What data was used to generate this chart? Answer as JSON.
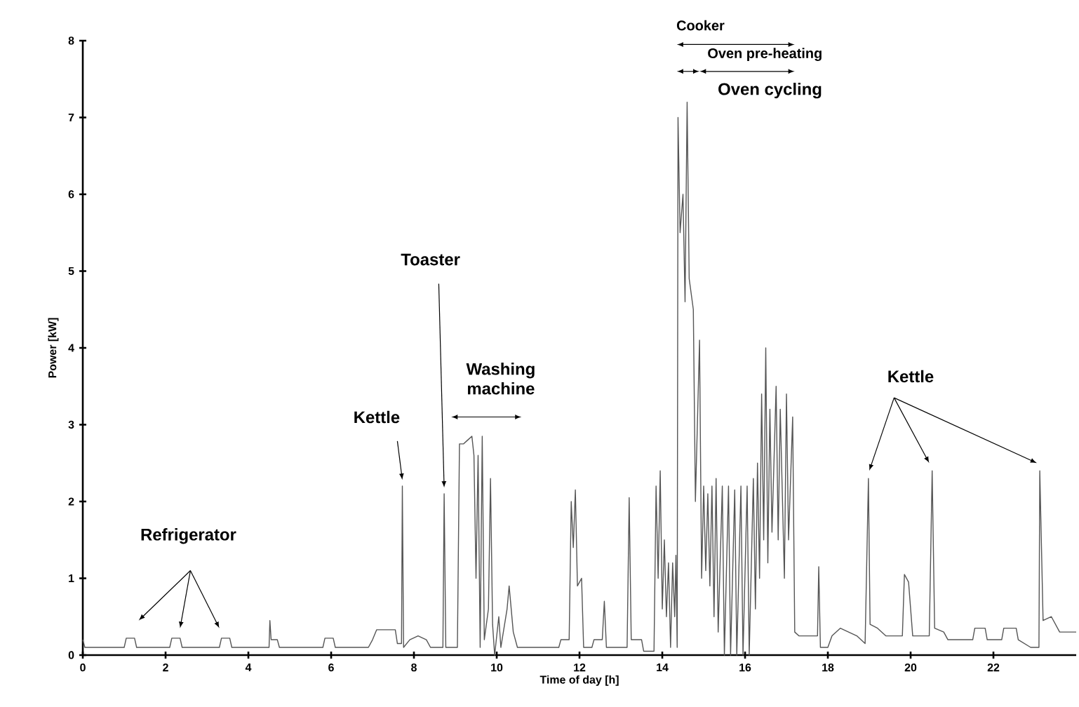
{
  "chart_data": {
    "type": "line",
    "xlabel": "Time of day [h]",
    "ylabel": "Power [kW]",
    "xlim": [
      0,
      24
    ],
    "ylim": [
      0,
      8
    ],
    "xticks": [
      0,
      2,
      4,
      6,
      8,
      10,
      12,
      14,
      16,
      18,
      20,
      22
    ],
    "yticks": [
      0,
      1,
      2,
      3,
      4,
      5,
      6,
      7,
      8
    ],
    "grid": false,
    "marker": "none",
    "line_style": "solid",
    "annotations": [
      "Refrigerator",
      {
        "text": "Kettle",
        "x": 7.72,
        "y": 2.2
      },
      {
        "text": "Toaster",
        "x": 8.73,
        "y": 2.1
      },
      "Washing machine",
      "Cooker",
      "Oven pre-heating",
      "Oven cycling",
      "Kettle"
    ],
    "series": [
      {
        "color": "#555555",
        "x": [
          0,
          0.05,
          1.0,
          1.05,
          1.25,
          1.3,
          2.1,
          2.15,
          2.35,
          2.4,
          3.3,
          3.35,
          3.55,
          3.6,
          4.5,
          4.52,
          4.55,
          4.7,
          4.75,
          5.8,
          5.85,
          6.05,
          6.1,
          6.9,
          7.0,
          7.1,
          7.55,
          7.6,
          7.7,
          7.72,
          7.75,
          7.9,
          8.1,
          8.3,
          8.4,
          8.7,
          8.73,
          8.77,
          9.05,
          9.1,
          9.2,
          9.3,
          9.4,
          9.45,
          9.5,
          9.55,
          9.6,
          9.65,
          9.7,
          9.8,
          9.85,
          9.9,
          9.95,
          10.05,
          10.1,
          10.25,
          10.3,
          10.4,
          10.5,
          11.5,
          11.55,
          11.75,
          11.8,
          11.85,
          11.9,
          11.95,
          12.05,
          12.1,
          12.3,
          12.35,
          12.55,
          12.6,
          12.65,
          13.15,
          13.2,
          13.25,
          13.5,
          13.55,
          13.8,
          13.85,
          13.9,
          13.95,
          14.0,
          14.05,
          14.1,
          14.15,
          14.2,
          14.25,
          14.3,
          14.33,
          14.36,
          14.38,
          14.43,
          14.5,
          14.55,
          14.6,
          14.65,
          14.75,
          14.8,
          14.9,
          14.95,
          15.0,
          15.05,
          15.1,
          15.15,
          15.2,
          15.25,
          15.3,
          15.35,
          15.45,
          15.5,
          15.6,
          15.65,
          15.75,
          15.8,
          15.9,
          15.95,
          16.05,
          16.1,
          16.2,
          16.25,
          16.3,
          16.35,
          16.4,
          16.45,
          16.5,
          16.55,
          16.6,
          16.65,
          16.75,
          16.8,
          16.85,
          16.95,
          17.0,
          17.05,
          17.15,
          17.2,
          17.3,
          17.75,
          17.78,
          17.82,
          18.0,
          18.1,
          18.3,
          18.5,
          18.7,
          18.9,
          18.98,
          19.02,
          19.2,
          19.4,
          19.8,
          19.85,
          19.95,
          20.05,
          20.45,
          20.52,
          20.58,
          20.8,
          20.9,
          21.5,
          21.55,
          21.8,
          21.85,
          22.2,
          22.25,
          22.55,
          22.6,
          22.9,
          23.1,
          23.12,
          23.2,
          23.4,
          23.6,
          24
        ],
        "values": [
          0.2,
          0.1,
          0.1,
          0.22,
          0.22,
          0.1,
          0.1,
          0.22,
          0.22,
          0.1,
          0.1,
          0.22,
          0.22,
          0.1,
          0.1,
          0.45,
          0.2,
          0.2,
          0.1,
          0.1,
          0.22,
          0.22,
          0.1,
          0.1,
          0.2,
          0.33,
          0.33,
          0.15,
          0.15,
          2.2,
          0.1,
          0.2,
          0.25,
          0.2,
          0.1,
          0.1,
          2.1,
          0.1,
          0.1,
          2.75,
          2.75,
          2.8,
          2.85,
          2.6,
          1.0,
          2.6,
          0.1,
          2.85,
          0.2,
          0.6,
          2.3,
          0.4,
          0.0,
          0.5,
          0.1,
          0.6,
          0.9,
          0.3,
          0.1,
          0.1,
          0.2,
          0.2,
          2.0,
          1.4,
          2.15,
          0.9,
          1.0,
          0.1,
          0.1,
          0.2,
          0.2,
          0.7,
          0.1,
          0.1,
          2.05,
          0.2,
          0.2,
          0.05,
          0.05,
          2.2,
          1.0,
          2.4,
          0.6,
          1.5,
          0.5,
          1.2,
          0.1,
          1.2,
          0.5,
          1.3,
          0.1,
          7.0,
          5.5,
          6.0,
          4.6,
          7.2,
          4.9,
          4.5,
          2.0,
          4.1,
          1.0,
          2.2,
          1.1,
          2.1,
          0.9,
          2.2,
          0.5,
          2.3,
          0.3,
          2.2,
          0.0,
          2.2,
          0.0,
          2.15,
          0.0,
          2.2,
          0.0,
          2.2,
          0.0,
          2.3,
          0.6,
          2.5,
          1.0,
          3.4,
          1.5,
          4.0,
          1.2,
          3.2,
          1.6,
          3.5,
          1.5,
          3.2,
          1.0,
          3.4,
          1.5,
          3.1,
          0.3,
          0.25,
          0.25,
          1.15,
          0.1,
          0.1,
          0.25,
          0.35,
          0.3,
          0.25,
          0.15,
          2.3,
          0.4,
          0.35,
          0.25,
          0.25,
          1.05,
          0.95,
          0.25,
          0.25,
          2.4,
          0.35,
          0.3,
          0.2,
          0.2,
          0.35,
          0.35,
          0.2,
          0.2,
          0.35,
          0.35,
          0.2,
          0.1,
          0.1,
          2.4,
          0.45,
          0.5,
          0.3,
          0.3
        ]
      }
    ]
  }
}
